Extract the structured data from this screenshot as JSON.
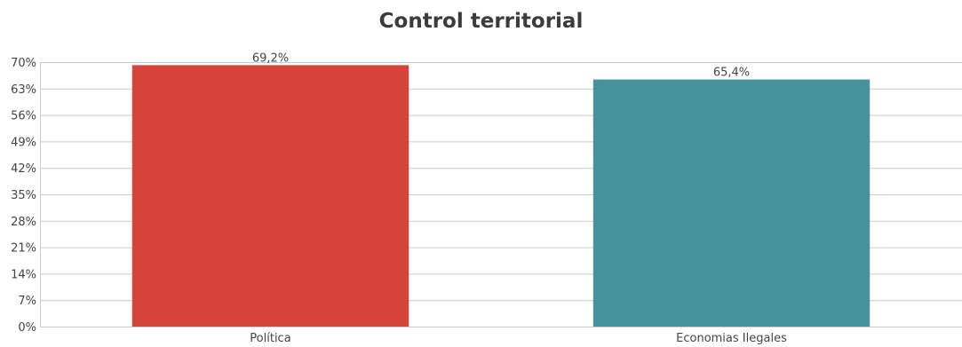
{
  "chart_data": {
    "type": "bar",
    "title": "Control territorial",
    "categories": [
      "Política",
      "Economias Ilegales"
    ],
    "values": [
      69.2,
      65.4
    ],
    "data_labels": [
      "69,2%",
      "65,4%"
    ],
    "colors": [
      "#d6433b",
      "#46939e"
    ],
    "ylim": [
      0,
      70
    ],
    "yticks": [
      0,
      7,
      14,
      21,
      28,
      35,
      42,
      49,
      56,
      63,
      70
    ],
    "ytick_labels": [
      "0%",
      "7%",
      "14%",
      "21%",
      "28%",
      "35%",
      "42%",
      "49%",
      "56%",
      "63%",
      "70%"
    ],
    "grid": true,
    "xlabel": "",
    "ylabel": ""
  }
}
